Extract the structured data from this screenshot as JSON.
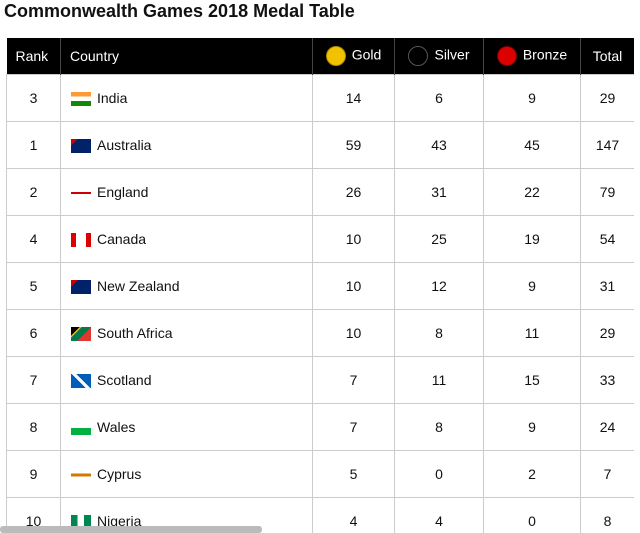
{
  "title": "Commonwealth Games 2018 Medal Table",
  "table": {
    "headers": [
      "Rank",
      "Country",
      "Gold",
      "Silver",
      "Bronze",
      "Total"
    ],
    "rows": [
      [
        3,
        "India",
        14,
        6,
        9,
        29
      ],
      [
        1,
        "Australia",
        59,
        43,
        45,
        147
      ],
      [
        2,
        "England",
        26,
        31,
        22,
        79
      ],
      [
        4,
        "Canada",
        10,
        25,
        19,
        54
      ],
      [
        5,
        "New Zealand",
        10,
        12,
        9,
        31
      ],
      [
        6,
        "South Africa",
        10,
        8,
        11,
        29
      ],
      [
        7,
        "Scotland",
        7,
        11,
        15,
        33
      ],
      [
        8,
        "Wales",
        7,
        8,
        9,
        24
      ],
      [
        9,
        "Cyprus",
        5,
        0,
        2,
        7
      ],
      [
        10,
        "Nigeria",
        4,
        4,
        0,
        8
      ]
    ]
  }
}
